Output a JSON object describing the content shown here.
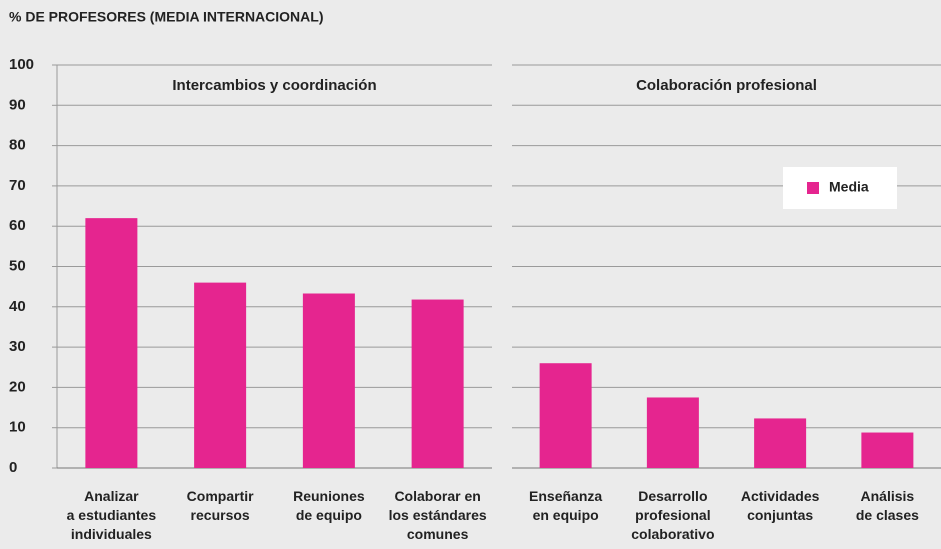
{
  "chart_data": [
    {
      "type": "bar",
      "ylabel": "% DE PROFESORES (MEDIA INTERNACIONAL)",
      "title": "Intercambios y coordinación",
      "categories": [
        [
          "Analizar",
          "a estudiantes",
          "individuales"
        ],
        [
          "Compartir",
          "recursos"
        ],
        [
          "Reuniones",
          "de equipo"
        ],
        [
          "Colaborar en",
          "los estándares",
          "comunes"
        ]
      ],
      "series": [
        {
          "color": "#e5258f",
          "values": [
            62,
            46,
            43.3,
            41.8
          ]
        }
      ],
      "ylim": [
        0,
        100
      ],
      "yticks": [
        0,
        10,
        20,
        30,
        40,
        50,
        60,
        70,
        80,
        90,
        100
      ],
      "grid": true
    },
    {
      "type": "bar",
      "title": "Colaboración profesional",
      "categories": [
        [
          "Enseñanza",
          "en equipo"
        ],
        [
          "Desarrollo",
          "profesional",
          "colaborativo"
        ],
        [
          "Actividades",
          "conjuntas"
        ],
        [
          "Análisis",
          "de clases"
        ]
      ],
      "series": [
        {
          "name": "Media",
          "color": "#e5258f",
          "values": [
            26,
            17.5,
            12.3,
            8.8
          ]
        }
      ],
      "ylim": [
        0,
        100
      ],
      "yticks": [
        0,
        10,
        20,
        30,
        40,
        50,
        60,
        70,
        80,
        90,
        100
      ],
      "grid": true,
      "legend": "upper right"
    }
  ]
}
